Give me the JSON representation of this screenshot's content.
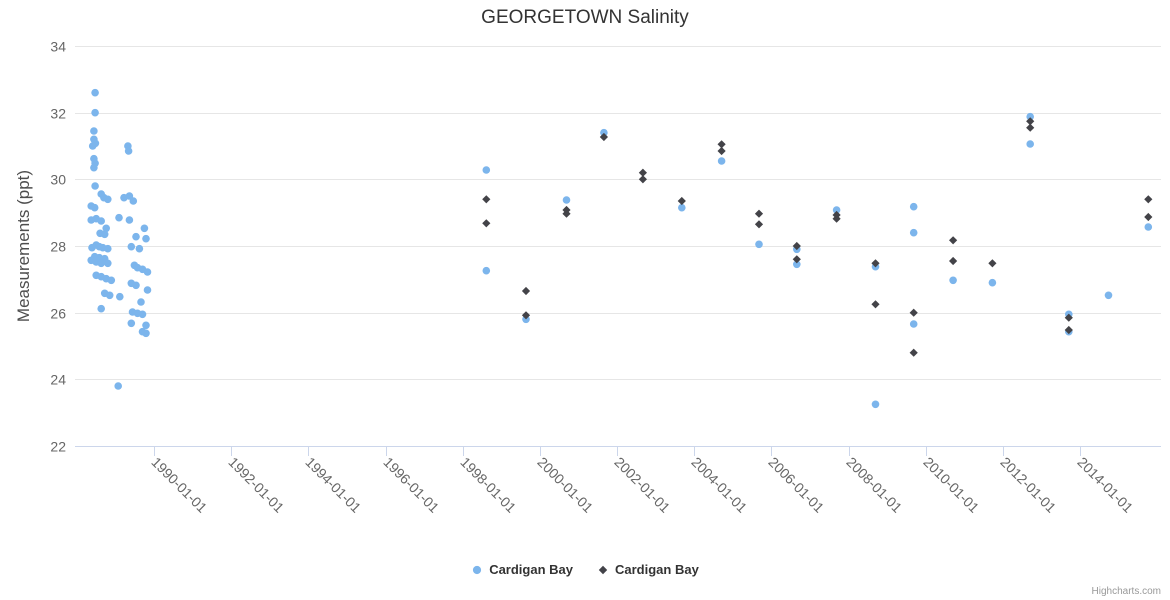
{
  "title": "GEORGETOWN Salinity",
  "credits": "Highcharts.com",
  "legend": {
    "items": [
      {
        "label": "Cardigan Bay",
        "marker": "circle",
        "color": "#7cb5ec"
      },
      {
        "label": "Cardigan Bay",
        "marker": "diamond",
        "color": "#434348"
      }
    ]
  },
  "chart_data": {
    "type": "scatter",
    "title": "GEORGETOWN Salinity",
    "xlabel": "",
    "ylabel": "Measurements (ppt)",
    "grid": "horizontal",
    "legend_position": "bottom-center",
    "x_axis": {
      "kind": "datetime",
      "label_rotation": 45,
      "tick_years": [
        1990,
        1992,
        1994,
        1996,
        1998,
        2000,
        2002,
        2004,
        2006,
        2008,
        2010,
        2012,
        2014
      ],
      "tick_labels": [
        "1990-01-01",
        "1992-01-01",
        "1994-01-01",
        "1996-01-01",
        "1998-01-01",
        "2000-01-01",
        "2002-01-01",
        "2004-01-01",
        "2006-01-01",
        "2008-01-01",
        "2010-01-01",
        "2012-01-01",
        "2014-01-01"
      ],
      "range_years": [
        1987.95,
        2016.1
      ]
    },
    "y_axis": {
      "ticks": [
        22,
        24,
        26,
        28,
        30,
        32,
        34
      ],
      "range": [
        22,
        34
      ]
    },
    "series": [
      {
        "name": "Cardigan Bay",
        "marker": "circle",
        "color": "#7cb5ec",
        "points": [
          [
            1988.47,
            32.6
          ],
          [
            1988.47,
            32.0
          ],
          [
            1988.44,
            31.45
          ],
          [
            1988.44,
            31.2
          ],
          [
            1988.48,
            31.08
          ],
          [
            1988.41,
            31.0
          ],
          [
            1989.32,
            31.0
          ],
          [
            1989.34,
            30.85
          ],
          [
            1988.44,
            30.62
          ],
          [
            1988.47,
            30.48
          ],
          [
            1988.44,
            30.35
          ],
          [
            1988.47,
            29.8
          ],
          [
            1988.63,
            29.56
          ],
          [
            1988.8,
            29.4
          ],
          [
            1988.7,
            29.45
          ],
          [
            1989.36,
            29.5
          ],
          [
            1989.22,
            29.45
          ],
          [
            1989.46,
            29.35
          ],
          [
            1988.37,
            29.2
          ],
          [
            1988.46,
            29.15
          ],
          [
            1988.5,
            28.82
          ],
          [
            1988.37,
            28.78
          ],
          [
            1988.63,
            28.75
          ],
          [
            1989.09,
            28.85
          ],
          [
            1989.36,
            28.78
          ],
          [
            1988.76,
            28.53
          ],
          [
            1989.75,
            28.53
          ],
          [
            1988.6,
            28.38
          ],
          [
            1988.72,
            28.35
          ],
          [
            1989.53,
            28.28
          ],
          [
            1989.79,
            28.22
          ],
          [
            1988.5,
            28.03
          ],
          [
            1988.58,
            27.98
          ],
          [
            1988.39,
            27.95
          ],
          [
            1988.67,
            27.95
          ],
          [
            1988.8,
            27.92
          ],
          [
            1989.41,
            27.98
          ],
          [
            1989.62,
            27.92
          ],
          [
            1988.46,
            27.68
          ],
          [
            1988.58,
            27.65
          ],
          [
            1988.72,
            27.62
          ],
          [
            1988.37,
            27.57
          ],
          [
            1988.5,
            27.52
          ],
          [
            1988.63,
            27.48
          ],
          [
            1988.8,
            27.48
          ],
          [
            1989.49,
            27.42
          ],
          [
            1989.57,
            27.35
          ],
          [
            1989.7,
            27.3
          ],
          [
            1989.83,
            27.22
          ],
          [
            1988.5,
            27.12
          ],
          [
            1988.63,
            27.08
          ],
          [
            1988.76,
            27.02
          ],
          [
            1988.89,
            26.97
          ],
          [
            1989.41,
            26.88
          ],
          [
            1989.53,
            26.82
          ],
          [
            1989.83,
            26.68
          ],
          [
            1988.72,
            26.58
          ],
          [
            1988.85,
            26.52
          ],
          [
            1989.11,
            26.48
          ],
          [
            1989.66,
            26.32
          ],
          [
            1988.63,
            26.12
          ],
          [
            1989.44,
            26.02
          ],
          [
            1989.57,
            25.98
          ],
          [
            1989.7,
            25.95
          ],
          [
            1989.41,
            25.68
          ],
          [
            1989.79,
            25.62
          ],
          [
            1989.7,
            25.43
          ],
          [
            1989.79,
            25.38
          ],
          [
            1989.07,
            23.8
          ],
          [
            1998.61,
            30.28
          ],
          [
            1998.61,
            27.26
          ],
          [
            1999.64,
            25.8
          ],
          [
            2000.69,
            29.38
          ],
          [
            2001.66,
            31.4
          ],
          [
            2003.68,
            29.15
          ],
          [
            2004.71,
            30.55
          ],
          [
            2005.68,
            28.05
          ],
          [
            2006.66,
            27.9
          ],
          [
            2006.66,
            27.45
          ],
          [
            2007.69,
            29.08
          ],
          [
            2008.7,
            27.38
          ],
          [
            2008.7,
            23.25
          ],
          [
            2009.69,
            29.18
          ],
          [
            2009.69,
            28.4
          ],
          [
            2009.69,
            25.66
          ],
          [
            2010.71,
            26.97
          ],
          [
            2011.73,
            26.9
          ],
          [
            2012.71,
            31.88
          ],
          [
            2012.71,
            31.06
          ],
          [
            2013.71,
            25.95
          ],
          [
            2013.71,
            25.43
          ],
          [
            2014.74,
            26.52
          ],
          [
            2015.77,
            28.57
          ]
        ]
      },
      {
        "name": "Cardigan Bay",
        "marker": "diamond",
        "color": "#434348",
        "points": [
          [
            1998.61,
            29.4
          ],
          [
            1998.61,
            28.68
          ],
          [
            1999.64,
            26.65
          ],
          [
            1999.64,
            25.92
          ],
          [
            2000.69,
            29.08
          ],
          [
            2000.69,
            28.97
          ],
          [
            2001.66,
            31.27
          ],
          [
            2002.67,
            30.2
          ],
          [
            2002.67,
            30.0
          ],
          [
            2003.68,
            29.35
          ],
          [
            2004.71,
            31.05
          ],
          [
            2004.71,
            30.85
          ],
          [
            2005.68,
            28.97
          ],
          [
            2005.68,
            28.65
          ],
          [
            2006.66,
            28.0
          ],
          [
            2006.66,
            27.6
          ],
          [
            2007.69,
            28.93
          ],
          [
            2007.69,
            28.82
          ],
          [
            2008.7,
            27.48
          ],
          [
            2008.7,
            26.25
          ],
          [
            2009.69,
            26.0
          ],
          [
            2009.69,
            24.8
          ],
          [
            2010.71,
            28.17
          ],
          [
            2010.71,
            27.55
          ],
          [
            2011.73,
            27.48
          ],
          [
            2012.71,
            31.74
          ],
          [
            2012.71,
            31.55
          ],
          [
            2013.71,
            25.85
          ],
          [
            2013.71,
            25.48
          ],
          [
            2015.77,
            29.4
          ],
          [
            2015.77,
            28.87
          ]
        ]
      }
    ]
  }
}
